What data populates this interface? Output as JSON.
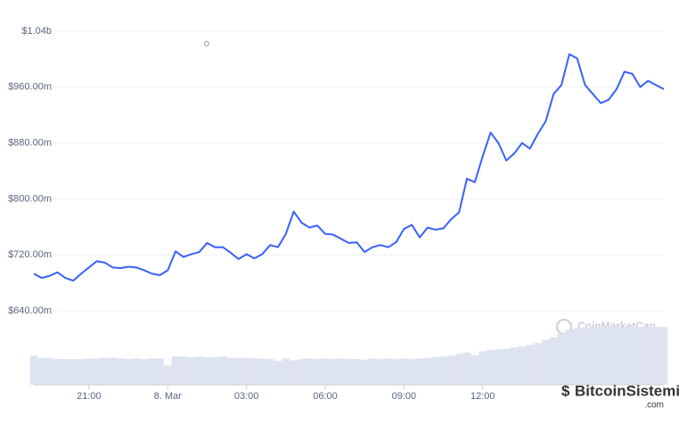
{
  "chart_data": {
    "type": "line",
    "watermark": "CoinMarketCap",
    "brand": "BitcoinSistemi",
    "brand_suffix": ".com",
    "xlim": [
      0,
      80
    ],
    "xticks": [
      {
        "value": 7,
        "label": "21:00"
      },
      {
        "value": 17,
        "label": "8. Mar"
      },
      {
        "value": 27,
        "label": "03:00"
      },
      {
        "value": 37,
        "label": "06:00"
      },
      {
        "value": 47,
        "label": "09:00"
      },
      {
        "value": 57,
        "label": "12:00"
      }
    ],
    "ylim": [
      640,
      1040
    ],
    "yticks": [
      {
        "value": 640,
        "label": "$640.00m"
      },
      {
        "value": 720,
        "label": "$720.00m"
      },
      {
        "value": 800,
        "label": "$800.00m"
      },
      {
        "value": 880,
        "label": "$880.00m"
      },
      {
        "value": 960,
        "label": "$960.00m"
      },
      {
        "value": 1040,
        "label": "$1.04b"
      }
    ],
    "y2lim": [
      0,
      100
    ],
    "grid": true,
    "series": [
      {
        "color": "#3861fb",
        "values": [
          693,
          687,
          690,
          695,
          687,
          683,
          693,
          702,
          711,
          709,
          702,
          701,
          703,
          702,
          698,
          693,
          691,
          698,
          725,
          717,
          721,
          724,
          737,
          731,
          731,
          723,
          714,
          721,
          715,
          721,
          734,
          731,
          750,
          782,
          766,
          759,
          762,
          750,
          749,
          743,
          737,
          738,
          724,
          731,
          734,
          731,
          738,
          757,
          763,
          745,
          759,
          756,
          758,
          771,
          781,
          829,
          824,
          861,
          895,
          880,
          855,
          865,
          880,
          872,
          893,
          911,
          950,
          963,
          1007,
          1001,
          963,
          950,
          937,
          942,
          957,
          982,
          979,
          960,
          969,
          963,
          957
        ]
      },
      {
        "color": "#dde3f0",
        "axis": "y2",
        "values": [
          45,
          42,
          42,
          40,
          40,
          40,
          40,
          41,
          41,
          42,
          42,
          41,
          40,
          41,
          40,
          41,
          41,
          30,
          44,
          44,
          43,
          44,
          43,
          43,
          44,
          42,
          42,
          42,
          41,
          41,
          40,
          37,
          41,
          38,
          40,
          41,
          40,
          41,
          40,
          41,
          40,
          40,
          39,
          41,
          40,
          41,
          40,
          41,
          40,
          41,
          42,
          43,
          44,
          45,
          48,
          50,
          46,
          52,
          54,
          55,
          56,
          58,
          60,
          62,
          65,
          70,
          74,
          80,
          86,
          88,
          88,
          89,
          89,
          89,
          90,
          90,
          90,
          90,
          90,
          90,
          90
        ]
      }
    ]
  }
}
